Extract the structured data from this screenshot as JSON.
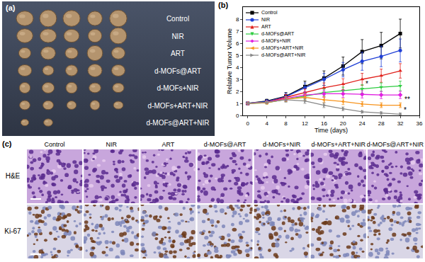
{
  "panel_labels": [
    "(a)",
    "(b)",
    "(c)"
  ],
  "photo_panel": {
    "rows": [
      "Control",
      "NIR",
      "ART",
      "d-MOFs@ART",
      "d-MOFs+NIR",
      "d-MOFs+ART+NIR",
      "d-MOFs@ART+NIR"
    ]
  },
  "chart_data": {
    "type": "line",
    "x_label": "Time (days)",
    "y_label": "Relative Tumor Volume",
    "x": [
      0,
      4,
      8,
      12,
      16,
      20,
      24,
      28,
      32
    ],
    "xlim": [
      -1,
      36
    ],
    "xticks": [
      0,
      4,
      8,
      12,
      16,
      20,
      24,
      28,
      32,
      36
    ],
    "ylim": [
      0,
      9
    ],
    "yticks": [
      0,
      1,
      2,
      3,
      4,
      5,
      6,
      7,
      8
    ],
    "grid": false,
    "legend": "upper left",
    "series": [
      {
        "name": "Control",
        "color": "#000000",
        "marker": "square",
        "line_style": "solid",
        "values": [
          1,
          1.2,
          1.6,
          2.4,
          3.1,
          4.1,
          5.3,
          5.8,
          6.8
        ],
        "errors": [
          0,
          0.15,
          0.3,
          0.45,
          0.6,
          0.75,
          1.0,
          1.1,
          1.2
        ]
      },
      {
        "name": "NIR",
        "color": "#1f3fd6",
        "marker": "circle",
        "line_style": "solid",
        "values": [
          1,
          1.15,
          1.55,
          2.3,
          3.0,
          3.8,
          4.5,
          4.9,
          5.4
        ],
        "errors": [
          0,
          0.15,
          0.3,
          0.4,
          0.5,
          0.6,
          0.75,
          0.85,
          0.95
        ]
      },
      {
        "name": "ART",
        "color": "#e0201b",
        "marker": "triangle-up",
        "line_style": "solid",
        "values": [
          1,
          1.1,
          1.5,
          1.9,
          2.3,
          2.6,
          3.0,
          3.3,
          3.7
        ],
        "errors": [
          0,
          0.1,
          0.25,
          0.3,
          0.4,
          0.45,
          0.5,
          0.55,
          0.6
        ]
      },
      {
        "name": "d-MOFs@ART",
        "color": "#2ecc40",
        "marker": "triangle-down",
        "line_style": "solid",
        "values": [
          1,
          1.05,
          1.35,
          1.6,
          1.9,
          2.05,
          2.2,
          2.35,
          2.45
        ],
        "errors": [
          0,
          0.1,
          0.2,
          0.25,
          0.3,
          0.3,
          0.35,
          0.35,
          0.4
        ]
      },
      {
        "name": "d-MOFs+NIR",
        "color": "#e020e0",
        "marker": "diamond",
        "line_style": "solid",
        "values": [
          1,
          1.1,
          1.4,
          1.7,
          1.8,
          1.8,
          1.75,
          1.7,
          1.7
        ],
        "errors": [
          0,
          0.1,
          0.2,
          0.25,
          0.3,
          0.3,
          0.3,
          0.3,
          0.3
        ]
      },
      {
        "name": "d-MOFs+ART+NIR",
        "color": "#f7941d",
        "marker": "triangle-left",
        "line_style": "solid",
        "values": [
          1,
          1.05,
          1.35,
          1.5,
          1.3,
          1.15,
          0.95,
          0.85,
          0.85
        ],
        "errors": [
          0,
          0.1,
          0.2,
          0.25,
          0.25,
          0.25,
          0.2,
          0.2,
          0.2
        ]
      },
      {
        "name": "d-MOFs@ART+NIR",
        "color": "#888888",
        "marker": "triangle-right",
        "line_style": "solid",
        "values": [
          1,
          1.1,
          1.3,
          1.2,
          0.85,
          0.55,
          0.3,
          0.2,
          0.1
        ],
        "errors": [
          0,
          0.1,
          0.2,
          0.2,
          0.2,
          0.15,
          0.1,
          0.1,
          0.1
        ]
      }
    ],
    "annotations": [
      {
        "text": "*",
        "x": 25,
        "y": 2.6
      },
      {
        "text": "**",
        "x": 33.5,
        "y": 1.3
      },
      {
        "text": "*",
        "x": 33,
        "y": 0.45
      }
    ]
  },
  "histology_panel": {
    "columns": [
      "Control",
      "NIR",
      "ART",
      "d-MOFs@ART",
      "d-MOFs+NIR",
      "d-MOFs+ART+NIR",
      "d-MOFs@ART+NIR"
    ],
    "rows": [
      "H&E",
      "Ki-67"
    ]
  }
}
